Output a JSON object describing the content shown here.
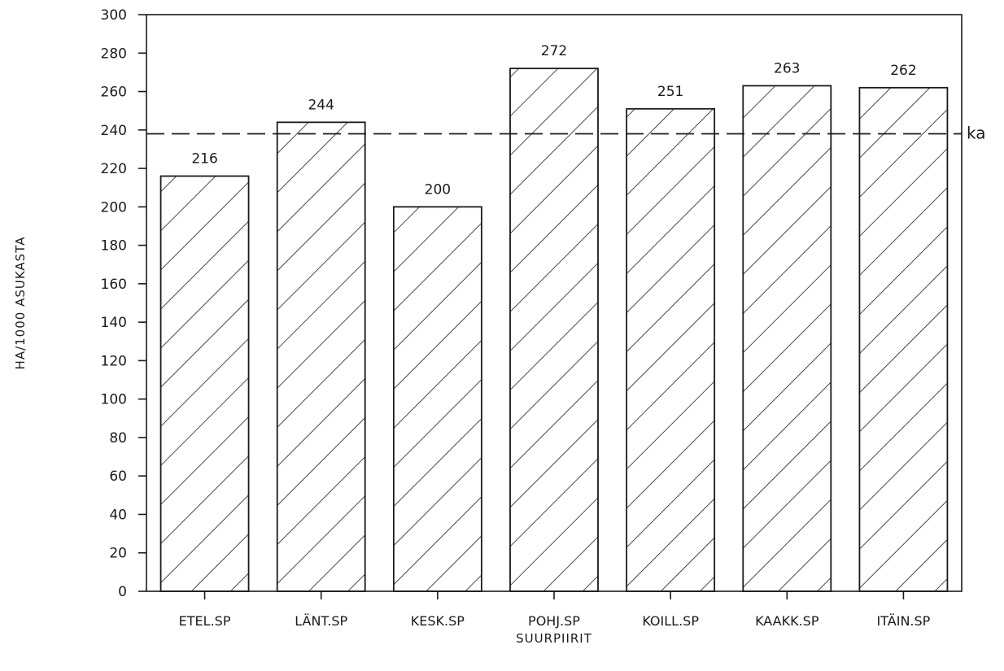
{
  "chart_data": {
    "type": "bar",
    "title": "",
    "xlabel": "SUURPIIRIT",
    "ylabel": "HA/1000 ASUKASTA",
    "categories": [
      "ETEL.SP",
      "LÄNT.SP",
      "KESK.SP",
      "POHJ.SP",
      "KOILL.SP",
      "KAAKK.SP",
      "ITÄIN.SP"
    ],
    "values": [
      216,
      244,
      200,
      272,
      251,
      263,
      262
    ],
    "data_labels": [
      "216",
      "244",
      "200",
      "272",
      "251",
      "263",
      "262"
    ],
    "ylim": [
      0,
      300
    ],
    "yticks": [
      0,
      20,
      40,
      60,
      80,
      100,
      120,
      140,
      160,
      180,
      200,
      220,
      240,
      260,
      280,
      300
    ],
    "reference_line": {
      "label": "ka",
      "value": 238,
      "style": "dashed"
    },
    "bar_fill": "diagonal-hatch",
    "grid": false,
    "legend": "none",
    "colors": {
      "ink": "#1a1a1a",
      "background": "#ffffff"
    }
  }
}
